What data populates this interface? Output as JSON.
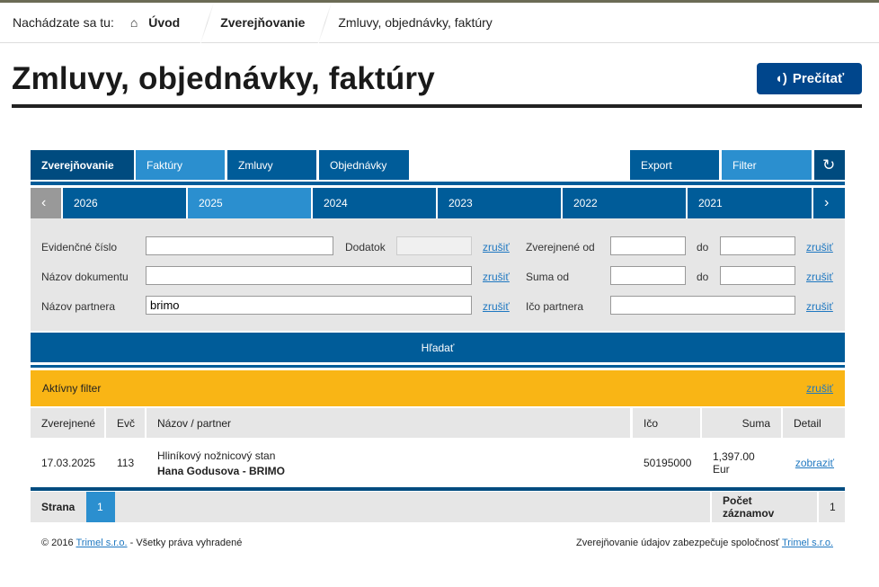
{
  "breadcrumb": {
    "prefix": "Nachádzate sa tu:",
    "home": "Úvod",
    "section": "Zverejňovanie",
    "current": "Zmluvy, objednávky, faktúry"
  },
  "page": {
    "title": "Zmluvy, objednávky, faktúry",
    "read_button": "Prečítať"
  },
  "tabs": [
    "Zverejňovanie",
    "Faktúry",
    "Zmluvy",
    "Objednávky"
  ],
  "actions": {
    "export": "Export",
    "filter": "Filter"
  },
  "years": [
    "2026",
    "2025",
    "2024",
    "2023",
    "2022",
    "2021"
  ],
  "selected_year": "2025",
  "filter": {
    "evidencne_cislo": "Evidenčné číslo",
    "dodatok": "Dodatok",
    "zverejnene_od": "Zverejnené od",
    "do": "do",
    "nazov_dokumentu": "Názov dokumentu",
    "suma_od": "Suma od",
    "nazov_partnera": "Názov partnera",
    "nazov_partnera_value": "brimo",
    "ico_partnera": "Ičo partnera",
    "clear": "zrušiť",
    "search": "Hľadať"
  },
  "active_filter": {
    "label": "Aktívny filter",
    "clear": "zrušiť"
  },
  "table": {
    "headers": [
      "Zverejnené",
      "Evč",
      "Názov / partner",
      "Ičo",
      "Suma",
      "Detail"
    ],
    "rows": [
      {
        "date": "17.03.2025",
        "evc": "113",
        "name": "Hliníkový nožnicový stan",
        "partner": "Hana Godusova - BRIMO",
        "ico": "50195000",
        "suma": "1,397.00 Eur",
        "detail": "zobraziť"
      }
    ]
  },
  "pager": {
    "label": "Strana",
    "page": "1",
    "count_label": "Počet záznamov",
    "count": "1"
  },
  "footer": {
    "copy": "© 2016",
    "company": "Trimel s.r.o.",
    "rights": "- Všetky práva vyhradené",
    "right_text": "Zverejňovanie údajov zabezpečuje spoločnosť",
    "right_company": "Trimel s.r.o."
  },
  "colors": {
    "dark": "#004b7f",
    "medium": "#005c99",
    "light": "#2b8fcf",
    "orange": "#f9b515"
  }
}
